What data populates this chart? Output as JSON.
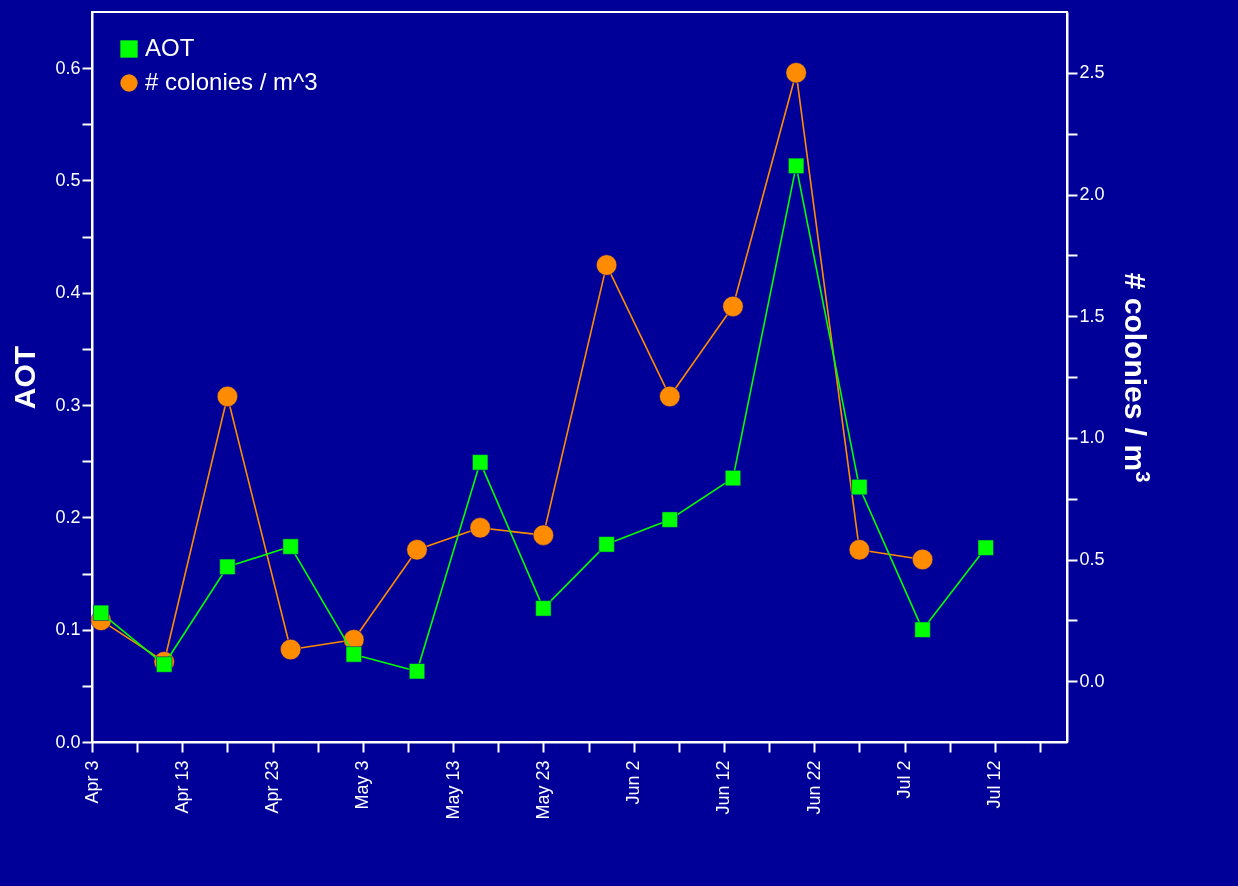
{
  "chart_data": {
    "type": "line",
    "xlabel": null,
    "ylabel": "AOT",
    "y2label": "# colonies / m$^{3}$",
    "x": [
      "--04-04",
      "--04-11",
      "--04-18",
      "--04-25",
      "--05-02",
      "--05-09",
      "--05-16",
      "--05-23",
      "--05-30",
      "--06-06",
      "--06-13",
      "--06-20",
      "--06-27",
      "--07-04",
      "--07-11"
    ],
    "series": [
      {
        "name": "AOT",
        "color": "#00ff00",
        "marker": "square",
        "values": [
          0.115,
          0.069,
          0.156,
          0.174,
          0.078,
          0.063,
          0.249,
          0.119,
          0.176,
          0.198,
          0.235,
          0.513,
          0.227,
          0.1,
          0.173
        ]
      },
      {
        "name": "# colonies / m^3",
        "color": "#ff8c00",
        "marker": "circle",
        "axis": "y2",
        "values": [
          0.25,
          0.08,
          1.17,
          0.13,
          0.17,
          0.54,
          0.63,
          0.6,
          1.71,
          1.17,
          1.54,
          2.5,
          0.54,
          0.5,
          null
        ]
      }
    ],
    "xlim": [
      "--04-03",
      "--07-20"
    ],
    "xticks": [
      {
        "value": "--04-03",
        "label": "Apr 3"
      },
      {
        "value": "--04-08",
        "label": null
      },
      {
        "value": "--04-13",
        "label": "Apr 13"
      },
      {
        "value": "--04-18",
        "label": null
      },
      {
        "value": "--04-23",
        "label": "Apr 23"
      },
      {
        "value": "--04-28",
        "label": null
      },
      {
        "value": "--05-03",
        "label": "May 3"
      },
      {
        "value": "--05-08",
        "label": null
      },
      {
        "value": "--05-13",
        "label": "May 13"
      },
      {
        "value": "--05-18",
        "label": null
      },
      {
        "value": "--05-23",
        "label": "May 23"
      },
      {
        "value": "--05-28",
        "label": null
      },
      {
        "value": "--06-02",
        "label": "Jun 2"
      },
      {
        "value": "--06-07",
        "label": null
      },
      {
        "value": "--06-12",
        "label": "Jun 12"
      },
      {
        "value": "--06-17",
        "label": null
      },
      {
        "value": "--06-22",
        "label": "Jun 22"
      },
      {
        "value": "--06-27",
        "label": null
      },
      {
        "value": "--07-02",
        "label": "Jul 2"
      },
      {
        "value": "--07-07",
        "label": null
      },
      {
        "value": "--07-12",
        "label": "Jul 12"
      },
      {
        "value": "--07-17",
        "label": null
      }
    ],
    "ylim": [
      0,
      0.65
    ],
    "yticks": [
      {
        "value": 0,
        "label": "0.0"
      },
      {
        "value": 0.05,
        "label": null
      },
      0.1,
      {
        "value": 0.15,
        "label": null
      },
      0.2,
      {
        "value": 0.25,
        "label": null
      },
      0.3,
      {
        "value": 0.35,
        "label": null
      },
      0.4,
      {
        "value": 0.45,
        "label": null
      },
      0.5,
      {
        "value": 0.55,
        "label": null
      },
      0.6
    ],
    "y2lim": [
      -0.25,
      2.75
    ],
    "y2ticks": [
      {
        "value": 0,
        "label": "0.0"
      },
      {
        "value": 0.25,
        "label": null
      },
      0.5,
      {
        "value": 0.75,
        "label": null
      },
      {
        "value": 1,
        "label": "1.0"
      },
      {
        "value": 1.25,
        "label": null
      },
      1.5,
      {
        "value": 1.75,
        "label": null
      },
      {
        "value": 2,
        "label": "2.0"
      },
      {
        "value": 2.25,
        "label": null
      },
      2.5
    ],
    "grid": false,
    "legend": "top left",
    "line_style": "solid"
  }
}
